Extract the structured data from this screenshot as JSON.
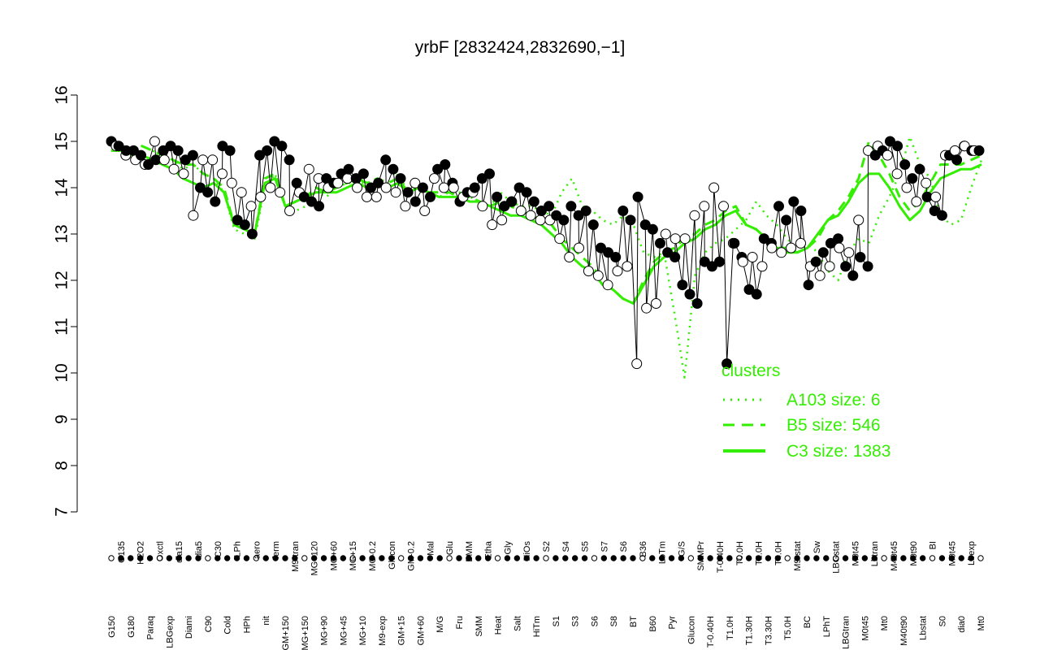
{
  "chart_data": {
    "type": "line",
    "title": "yrbF [2832424,2832690,−1]",
    "xlabel": "",
    "ylabel": "",
    "ylim": [
      7,
      16
    ],
    "yticks": [
      7,
      8,
      9,
      10,
      11,
      12,
      13,
      14,
      15,
      16
    ],
    "grid": false,
    "legend_position": "right",
    "colors": {
      "cluster": "#33ee00",
      "points": "#000000",
      "axis": "#000000"
    },
    "categories_top": [
      "G135",
      "H2O2",
      "Oxctl",
      "dia15",
      "dia5",
      "C30",
      "LPh",
      "aero",
      "ferm",
      "M9-tran",
      "MG+120",
      "MG+60",
      "MG+15",
      "MG-0.2",
      "Glucon",
      "GM-0.2",
      "Mal",
      "Glu",
      "BMM",
      "Etha",
      "Gly",
      "HiOs",
      "S2",
      "S4",
      "S5",
      "S7",
      "S6",
      "B36",
      "LoTm",
      "G/S",
      "SMMPr",
      "T-0.40H",
      "T0.0H",
      "T2.0H",
      "T4.0H",
      "M9-stat",
      "Sw",
      "LBGstat",
      "M0t45",
      "Lbtran",
      "M40t45",
      "M0t90",
      "BI",
      "M0t45",
      "Lbexp"
    ],
    "categories_bottom": [
      "G150",
      "G180",
      "Paraq",
      "LBGexp",
      "Diami",
      "C90",
      "Cold",
      "HPh",
      "nit",
      "GM+150",
      "MG+150",
      "MG+90",
      "MG+45",
      "MG+10",
      "M9-exp",
      "GM+15",
      "GM+60",
      "M/G",
      "Fru",
      "SMM",
      "Heat",
      "Salt",
      "HiTm",
      "S1",
      "S3",
      "S6",
      "S8",
      "BT",
      "B60",
      "Pyr",
      "Glucon",
      "T-0.40H",
      "T1.0H",
      "T1.30H",
      "T3.30H",
      "T5.0H",
      "BC",
      "LPhT",
      "LBGtran",
      "M0t45",
      "Mt0",
      "M40t90",
      "Lbstat",
      "S0",
      "dia0",
      "Mt0"
    ],
    "series": [
      {
        "name": "A103 size: 6",
        "style": "dotted",
        "values": [
          14.8,
          14.9,
          14.8,
          14.9,
          14.8,
          14.7,
          14.6,
          14.4,
          14.5,
          14.3,
          14.2,
          13.9,
          13.1,
          13.0,
          12.9,
          14.0,
          14.3,
          13.6,
          13.5,
          13.6,
          13.9,
          13.8,
          14.0,
          14.1,
          14.1,
          14.1,
          14.2,
          14.0,
          14.3,
          13.9,
          14.0,
          13.9,
          13.8,
          13.9,
          13.9,
          13.8,
          13.7,
          13.6,
          13.9,
          13.7,
          13.6,
          13.6,
          13.5,
          13.4,
          13.9,
          14.2,
          13.6,
          13.5,
          13.3,
          13.2,
          13.4,
          13.2,
          12.6,
          12.5,
          12.6,
          11.3,
          9.9,
          12.1,
          12.6,
          12.8,
          12.9,
          13.1,
          13.3,
          13.7,
          13.4,
          13.2,
          12.9,
          12.7,
          12.8,
          12.6,
          12.2,
          12.0,
          12.6,
          12.9,
          12.8,
          13.4,
          13.8,
          14.3,
          15.1,
          14.5,
          14.2,
          13.4,
          13.2,
          13.3,
          14.0,
          14.6
        ]
      },
      {
        "name": "B5 size: 546",
        "style": "dashed",
        "values": [
          14.9,
          14.9,
          14.8,
          14.9,
          14.8,
          14.7,
          14.6,
          14.5,
          14.5,
          14.3,
          14.2,
          14.0,
          13.2,
          13.1,
          13.0,
          14.2,
          14.3,
          13.6,
          13.7,
          13.8,
          14.0,
          13.9,
          14.0,
          14.1,
          14.2,
          14.1,
          14.2,
          14.1,
          14.2,
          13.9,
          14.0,
          13.9,
          13.9,
          13.9,
          13.8,
          13.8,
          13.7,
          13.6,
          13.7,
          13.6,
          13.5,
          13.4,
          13.3,
          13.2,
          12.9,
          12.7,
          12.5,
          12.3,
          12.0,
          11.8,
          11.6,
          11.5,
          12.0,
          12.4,
          12.6,
          12.7,
          12.9,
          13.0,
          13.2,
          13.3,
          13.5,
          13.6,
          13.2,
          13.1,
          12.9,
          12.7,
          12.7,
          12.6,
          12.7,
          12.9,
          13.3,
          13.5,
          13.8,
          14.2,
          15.0,
          14.7,
          14.3,
          13.8,
          13.5,
          13.7,
          14.1,
          14.5,
          14.5,
          14.5,
          14.6,
          14.7
        ]
      },
      {
        "name": "C3 size: 1383",
        "style": "solid",
        "values": [
          14.8,
          14.8,
          14.7,
          14.7,
          14.6,
          14.5,
          14.4,
          14.2,
          14.1,
          14.0,
          14.1,
          13.9,
          13.2,
          13.1,
          13.0,
          14.1,
          14.2,
          13.6,
          13.7,
          13.8,
          13.9,
          13.9,
          13.9,
          14.0,
          14.1,
          14.0,
          14.1,
          14.0,
          14.1,
          13.9,
          14.0,
          13.9,
          13.8,
          13.8,
          13.8,
          13.7,
          13.7,
          13.6,
          13.5,
          13.4,
          13.4,
          13.3,
          13.2,
          13.0,
          12.8,
          12.5,
          12.3,
          12.2,
          11.9,
          11.8,
          11.6,
          11.5,
          11.9,
          12.3,
          12.5,
          12.6,
          12.8,
          12.9,
          13.1,
          13.2,
          13.4,
          13.5,
          13.2,
          13.1,
          12.9,
          12.7,
          12.6,
          12.6,
          12.7,
          13.0,
          13.3,
          13.4,
          13.7,
          14.1,
          14.3,
          14.3,
          14.0,
          13.6,
          13.3,
          13.5,
          13.9,
          14.2,
          14.3,
          14.4,
          14.4,
          14.5
        ]
      }
    ],
    "points": {
      "filled": [
        15.0,
        14.9,
        14.8,
        14.8,
        14.7,
        14.5,
        14.6,
        14.8,
        14.9,
        14.8,
        14.6,
        14.7,
        14.0,
        13.9,
        13.7,
        14.9,
        14.8,
        13.3,
        13.2,
        13.0,
        14.7,
        14.8,
        15.0,
        14.9,
        14.6,
        14.1,
        13.8,
        13.7,
        13.6,
        14.2,
        14.1,
        14.3,
        14.4,
        14.2,
        14.3,
        14.0,
        14.1,
        14.6,
        14.4,
        14.2,
        13.9,
        13.7,
        14.0,
        13.8,
        14.4,
        14.5,
        14.1,
        13.7,
        13.9,
        14.0,
        14.2,
        14.3,
        13.8,
        13.6,
        13.7,
        14.0,
        13.9,
        13.7,
        13.5,
        13.6,
        13.4,
        13.3,
        13.6,
        13.4,
        13.5,
        13.2,
        12.7,
        12.6,
        12.5,
        13.5,
        13.3,
        13.8,
        13.2,
        13.1,
        12.8,
        12.6,
        12.5,
        11.9,
        11.7,
        11.5,
        12.4,
        12.3,
        12.4,
        10.2,
        12.8,
        12.5,
        11.8,
        11.7,
        12.9,
        12.8,
        13.6,
        13.3,
        13.7,
        13.5,
        11.9,
        12.4,
        12.6,
        12.8,
        12.9,
        12.3,
        12.1,
        12.5,
        12.3,
        14.7,
        14.8,
        15.0,
        14.9,
        14.5,
        14.2,
        14.4,
        13.8,
        13.5,
        13.4,
        14.7,
        14.6,
        14.9,
        14.8,
        14.8
      ],
      "open": [
        14.9,
        14.7,
        14.6,
        14.5,
        15.0,
        14.6,
        14.4,
        14.3,
        13.4,
        14.6,
        14.6,
        14.3,
        14.1,
        13.9,
        13.6,
        13.8,
        14.0,
        13.9,
        13.5,
        13.9,
        14.4,
        14.2,
        14.0,
        14.1,
        14.2,
        14.0,
        13.8,
        13.8,
        14.0,
        13.9,
        13.6,
        14.1,
        13.5,
        14.2,
        14.0,
        14.0,
        13.8,
        13.9,
        13.6,
        13.2,
        13.3,
        13.7,
        13.5,
        13.4,
        13.3,
        13.3,
        12.9,
        12.5,
        12.7,
        12.2,
        12.1,
        11.9,
        12.2,
        12.3,
        10.2,
        11.4,
        11.5,
        13.0,
        12.9,
        12.9,
        13.4,
        13.6,
        14.0,
        13.6,
        12.8,
        12.4,
        12.5,
        12.3,
        12.7,
        12.6,
        12.7,
        12.8,
        12.3,
        12.1,
        12.3,
        12.7,
        12.6,
        13.3,
        14.8,
        14.9,
        14.7,
        14.3,
        14.0,
        13.7,
        14.1,
        13.8,
        14.7,
        14.8,
        14.9,
        14.8
      ]
    },
    "legend": {
      "title": "clusters",
      "entries": [
        "A103 size: 6",
        "B5 size: 546",
        "C3 size: 1383"
      ]
    }
  }
}
